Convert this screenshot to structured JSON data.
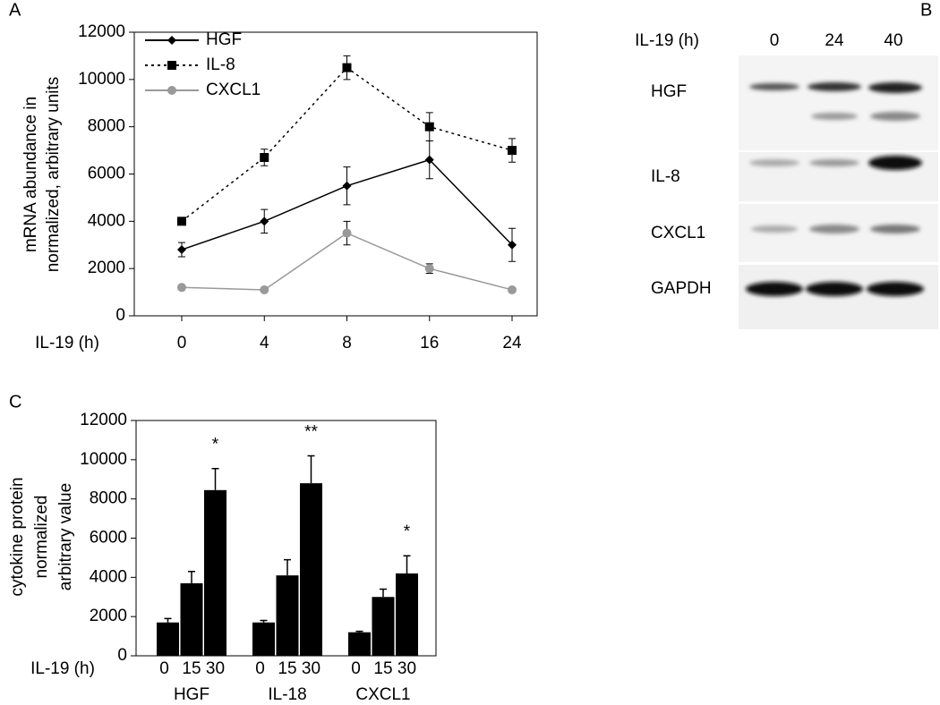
{
  "chart_data": [
    {
      "type": "line",
      "label": "A",
      "xlabel": "IL-19 (h)",
      "ylabel": [
        "mRNA abundance in",
        "normalized, arbitrary units"
      ],
      "categories": [
        "0",
        "4",
        "8",
        "16",
        "24"
      ],
      "ylim": [
        0,
        12000
      ],
      "yticks": [
        0,
        2000,
        4000,
        6000,
        8000,
        10000,
        12000
      ],
      "legend": "top-left",
      "series": [
        {
          "name": "HGF",
          "color": "#000000",
          "dash": "solid",
          "marker": "diamond",
          "values": [
            2800,
            4000,
            5500,
            6600,
            3000
          ],
          "errors": [
            300,
            500,
            800,
            800,
            700
          ]
        },
        {
          "name": "IL-8",
          "color": "#000000",
          "dash": "dotted",
          "marker": "square",
          "values": [
            4000,
            6700,
            10500,
            8000,
            7000
          ],
          "errors": [
            100,
            350,
            500,
            600,
            500
          ]
        },
        {
          "name": "CXCL1",
          "color": "#999999",
          "dash": "solid",
          "marker": "circle",
          "values": [
            1200,
            1100,
            3500,
            2000,
            1100
          ],
          "errors": [
            50,
            50,
            500,
            200,
            50
          ]
        }
      ]
    },
    {
      "type": "grouped-bar",
      "label": "C",
      "xlabel": "IL-19 (h)",
      "ylabel": [
        "cytokine protein",
        "normalized",
        "arbitrary value"
      ],
      "categories": [
        "HGF",
        "IL-18",
        "CXCL1"
      ],
      "subcategories": [
        "0",
        "15",
        "30"
      ],
      "color": "#000000",
      "ylim": [
        0,
        12000
      ],
      "yticks": [
        0,
        2000,
        4000,
        6000,
        8000,
        10000,
        12000
      ],
      "values": [
        [
          1700,
          3700,
          8450
        ],
        [
          1700,
          4100,
          8800
        ],
        [
          1200,
          3000,
          4200
        ]
      ],
      "errors": [
        [
          200,
          600,
          1100
        ],
        [
          100,
          800,
          1400
        ],
        [
          50,
          400,
          900
        ]
      ],
      "significance": [
        [
          null,
          null,
          "*"
        ],
        [
          null,
          null,
          "**"
        ],
        [
          null,
          null,
          "*"
        ]
      ]
    }
  ],
  "blot": {
    "label": "B",
    "xlabel": "IL-19 (h)",
    "lanes": [
      "0",
      "24",
      "40"
    ],
    "rows": [
      "HGF",
      "IL-8",
      "CXCL1",
      "GAPDH"
    ]
  }
}
